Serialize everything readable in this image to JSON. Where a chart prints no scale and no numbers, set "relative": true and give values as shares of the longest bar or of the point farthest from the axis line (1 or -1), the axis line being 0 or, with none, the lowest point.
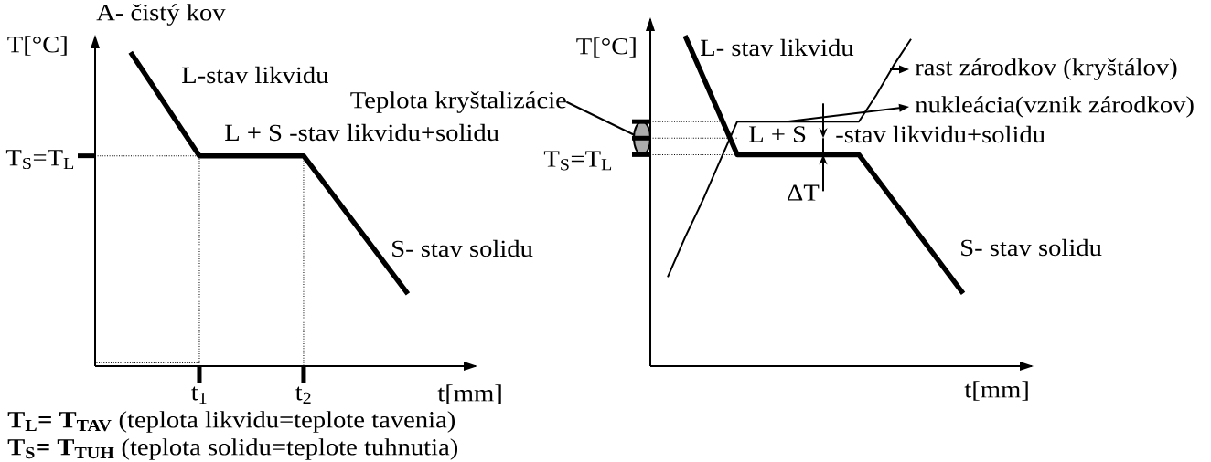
{
  "chart_data": [
    {
      "type": "line",
      "title": "A- čistý kov",
      "xlabel": "t[mm]",
      "ylabel": "T[°C]",
      "relative": true,
      "xlim": [
        0,
        3.65
      ],
      "xticks": [
        {
          "value": 1,
          "label": "t$_{1}$"
        },
        {
          "value": 2,
          "label": "t$_{2}$"
        }
      ],
      "series": [
        {
          "color": "#000000",
          "x": [
            0.34,
            1,
            2,
            3.0
          ],
          "values": [
            1.0,
            0.67,
            0.67,
            0.23
          ]
        },
        {
          "color": "#000000",
          "line_style": "dotted",
          "x": [
            0,
            1,
            1,
            0
          ],
          "values": [
            0.67,
            0.67,
            0.01,
            0.01
          ]
        },
        {
          "color": "#000000",
          "line_style": "dotted",
          "x": [
            2,
            2
          ],
          "values": [
            0.67,
            0
          ]
        }
      ],
      "annotations": [
        "L-stav likvidu",
        "L + S -stav likvidu+solidu",
        "S- stav solidu",
        {
          "text": "T$_{S}$=T$_{L}$",
          "x": 0,
          "y": 0.67
        },
        "**T$_{L}$= T$_{TAV}$** (teplota likvidu=teplote tavenia)",
        "**T$_{S}$= T$_{TUH}$** (teplota solidu=teplote tuhnutia)"
      ]
    },
    {
      "type": "line",
      "xlabel": "t[mm]",
      "ylabel": "T[°C]",
      "relative": true,
      "categories": [
        null,
        null,
        null,
        null,
        null,
        null,
        null,
        null,
        null,
        null,
        null,
        null,
        null,
        null,
        null,
        null,
        null,
        null,
        null
      ],
      "series": [
        {
          "color": "#000000",
          "values": [
            null,
            null,
            1.0,
            0.88,
            0.76,
            0.64,
            0.64,
            0.64,
            0.64,
            0.64,
            0.64,
            0.64,
            0.64,
            0.57,
            0.5,
            0.43,
            0.36,
            0.29,
            0.22
          ]
        },
        {
          "color": "#000000",
          "values": [
            null,
            0.27,
            0.39,
            0.5,
            0.62,
            0.74,
            0.74,
            0.74,
            0.74,
            0.74,
            0.74,
            0.74,
            0.74,
            0.82,
            0.91,
            0.99,
            null,
            null,
            null
          ]
        },
        {
          "color": "#000000",
          "line_style": "dotted",
          "values": [
            0.74,
            0.74,
            0.74,
            0.74,
            0.74,
            null,
            null,
            null,
            null,
            null,
            null,
            null,
            null,
            null,
            null,
            null,
            null,
            null,
            null
          ]
        },
        {
          "color": "#000000",
          "line_style": "dotted",
          "values": [
            0.69,
            0.69,
            0.69,
            0.69,
            0.69,
            0.69,
            null,
            null,
            null,
            null,
            null,
            null,
            null,
            null,
            null,
            null,
            null,
            null,
            null
          ]
        },
        {
          "color": "#000000",
          "line_style": "dotted",
          "values": [
            0.64,
            0.64,
            0.64,
            0.64,
            0.64,
            0.64,
            null,
            null,
            null,
            null,
            null,
            null,
            null,
            null,
            null,
            null,
            null,
            null,
            null
          ]
        }
      ],
      "annotations": [
        "L- stav likvidu",
        "L + S",
        "-stav likvidu+solidu",
        "S- stav solidu",
        "Teplota kryštalizácie",
        "rast zárodkov (kryštálov)",
        "nukleácia(vznik zárodkov)",
        "ΔT",
        "T$_{S}$=T$_{L}$"
      ]
    }
  ]
}
